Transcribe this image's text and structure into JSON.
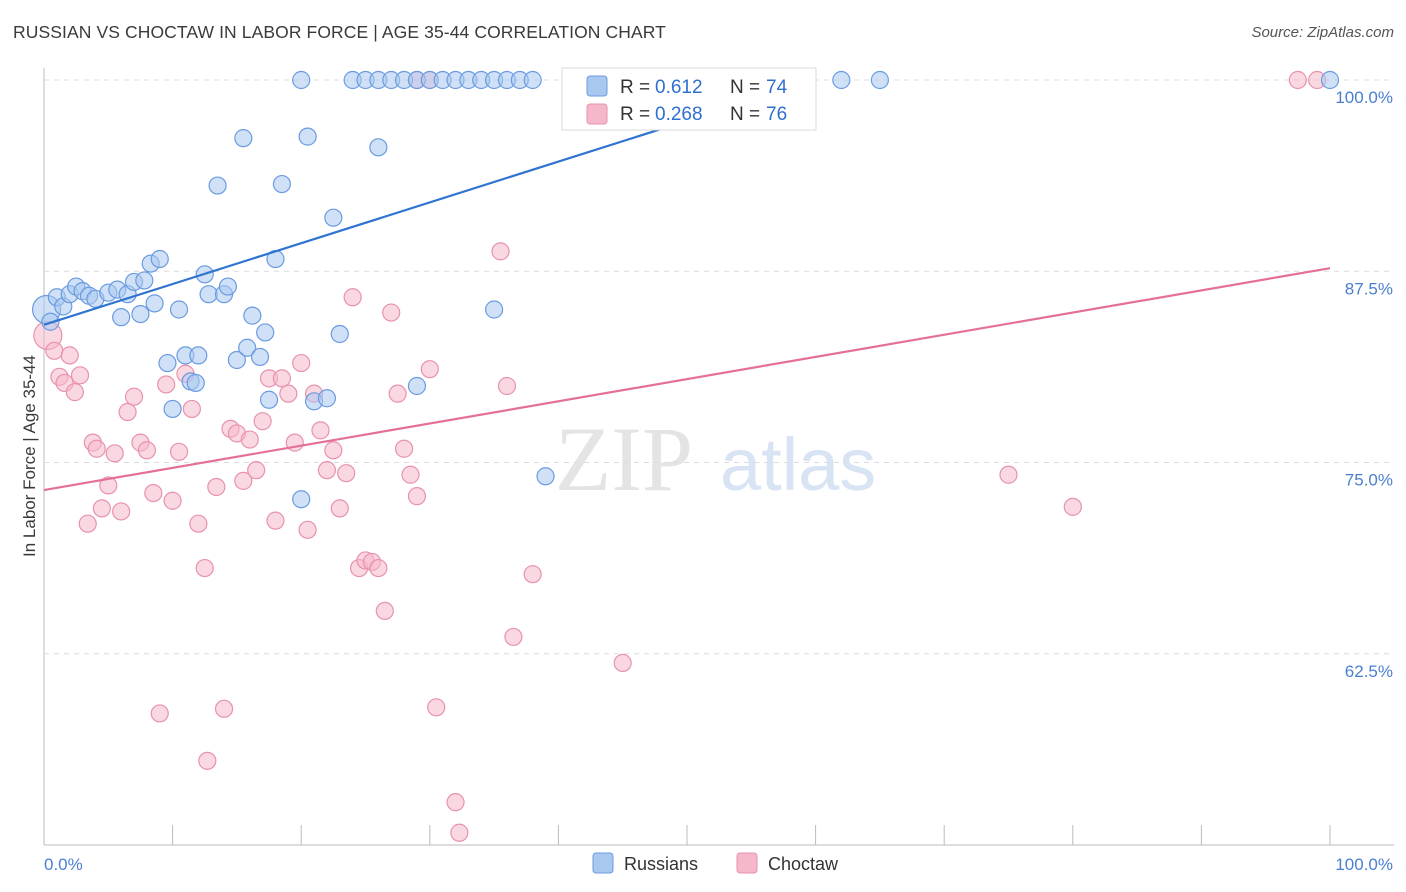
{
  "title": "RUSSIAN VS CHOCTAW IN LABOR FORCE | AGE 35-44 CORRELATION CHART",
  "source": "Source: ZipAtlas.com",
  "colors": {
    "russians_fill": "#a9c8f0",
    "russians_stroke": "#6a9be0",
    "russians_line": "#2f74d0",
    "choctaw_fill": "#f5b8ca",
    "choctaw_stroke": "#e892ad",
    "choctaw_line": "#e4709a",
    "tick_text": "#4a7fd0",
    "grid": "#dcdcdc"
  },
  "legend": {
    "r1_label": "R =",
    "r1_value": "0.612",
    "n1_label": "N =",
    "n1_value": "74",
    "r2_label": "R =",
    "r2_value": "0.268",
    "n2_label": "N =",
    "n2_value": "76"
  },
  "bottom_legend": {
    "series1": "Russians",
    "series2": "Choctaw"
  },
  "watermark": {
    "part1": "ZIP",
    "part2": "atlas"
  },
  "chart_data": {
    "type": "scatter",
    "title": "RUSSIAN VS CHOCTAW IN LABOR FORCE | AGE 35-44 CORRELATION CHART",
    "ylabel": "In Labor Force | Age 35-44",
    "xlabel": "",
    "xlim": [
      0,
      100
    ],
    "ylim": [
      50,
      100
    ],
    "x_tick_labels": [
      "0.0%",
      "100.0%"
    ],
    "y_ticks": [
      62.5,
      75.0,
      87.5,
      100.0
    ],
    "y_tick_labels": [
      "62.5%",
      "75.0%",
      "87.5%",
      "100.0%"
    ],
    "grid": "horizontal dashed",
    "legend_position": "top-center",
    "series": [
      {
        "name": "Russians",
        "R": 0.612,
        "N": 74,
        "trend": {
          "x": [
            0,
            60
          ],
          "y": [
            84.0,
            100.0
          ]
        },
        "points": [
          [
            0.2,
            85.0
          ],
          [
            0.5,
            84.2
          ],
          [
            1.0,
            85.8
          ],
          [
            1.5,
            85.2
          ],
          [
            2.0,
            86.0
          ],
          [
            2.5,
            86.5
          ],
          [
            3.0,
            86.2
          ],
          [
            3.5,
            85.9
          ],
          [
            4.0,
            85.7
          ],
          [
            5.0,
            86.1
          ],
          [
            5.7,
            86.3
          ],
          [
            6.0,
            84.5
          ],
          [
            6.5,
            86.0
          ],
          [
            7.0,
            86.8
          ],
          [
            7.5,
            84.7
          ],
          [
            7.8,
            86.9
          ],
          [
            8.3,
            88.0
          ],
          [
            8.6,
            85.4
          ],
          [
            9.0,
            88.3
          ],
          [
            9.6,
            81.5
          ],
          [
            10.0,
            78.5
          ],
          [
            10.5,
            85.0
          ],
          [
            11.0,
            82.0
          ],
          [
            11.4,
            80.3
          ],
          [
            11.8,
            80.2
          ],
          [
            12.0,
            82.0
          ],
          [
            12.5,
            87.3
          ],
          [
            12.8,
            86.0
          ],
          [
            13.5,
            93.1
          ],
          [
            14.0,
            86.0
          ],
          [
            14.3,
            86.5
          ],
          [
            15.0,
            81.7
          ],
          [
            15.5,
            96.2
          ],
          [
            15.8,
            82.5
          ],
          [
            16.2,
            84.6
          ],
          [
            16.8,
            81.9
          ],
          [
            17.2,
            83.5
          ],
          [
            17.5,
            79.1
          ],
          [
            18.0,
            88.3
          ],
          [
            18.5,
            93.2
          ],
          [
            20.0,
            72.6
          ],
          [
            20.5,
            96.3
          ],
          [
            21.0,
            79.0
          ],
          [
            22.0,
            79.2
          ],
          [
            22.5,
            91.0
          ],
          [
            23.0,
            83.4
          ],
          [
            26.0,
            95.6
          ],
          [
            29.0,
            80.0
          ],
          [
            35.0,
            85.0
          ],
          [
            39.0,
            74.1
          ],
          [
            20.0,
            100.0
          ],
          [
            24.0,
            100.0
          ],
          [
            25.0,
            100.0
          ],
          [
            26.0,
            100.0
          ],
          [
            27.0,
            100.0
          ],
          [
            28.0,
            100.0
          ],
          [
            29.0,
            100.0
          ],
          [
            30.0,
            100.0
          ],
          [
            31.0,
            100.0
          ],
          [
            32.0,
            100.0
          ],
          [
            33.0,
            100.0
          ],
          [
            34.0,
            100.0
          ],
          [
            35.0,
            100.0
          ],
          [
            36.0,
            100.0
          ],
          [
            37.0,
            100.0
          ],
          [
            38.0,
            100.0
          ],
          [
            41.0,
            100.0
          ],
          [
            43.0,
            100.0
          ],
          [
            47.0,
            100.0
          ],
          [
            48.0,
            100.0
          ],
          [
            58.0,
            100.0
          ],
          [
            62.0,
            100.0
          ],
          [
            65.0,
            100.0
          ],
          [
            100.0,
            100.0
          ]
        ]
      },
      {
        "name": "Choctaw",
        "R": 0.268,
        "N": 76,
        "trend": {
          "x": [
            0,
            100
          ],
          "y": [
            73.2,
            87.7
          ]
        },
        "points": [
          [
            0.3,
            83.3
          ],
          [
            0.8,
            82.3
          ],
          [
            1.2,
            80.6
          ],
          [
            1.6,
            80.2
          ],
          [
            2.0,
            82.0
          ],
          [
            2.4,
            79.6
          ],
          [
            2.8,
            80.7
          ],
          [
            3.4,
            71.0
          ],
          [
            3.8,
            76.3
          ],
          [
            4.1,
            75.9
          ],
          [
            4.5,
            72.0
          ],
          [
            5.0,
            73.5
          ],
          [
            5.5,
            75.6
          ],
          [
            6.0,
            71.8
          ],
          [
            6.5,
            78.3
          ],
          [
            7.0,
            79.3
          ],
          [
            7.5,
            76.3
          ],
          [
            8.0,
            75.8
          ],
          [
            8.5,
            73.0
          ],
          [
            9.0,
            58.6
          ],
          [
            9.5,
            80.1
          ],
          [
            10.0,
            72.5
          ],
          [
            10.5,
            75.7
          ],
          [
            11.0,
            80.8
          ],
          [
            11.5,
            78.5
          ],
          [
            12.0,
            71.0
          ],
          [
            12.5,
            68.1
          ],
          [
            12.7,
            55.5
          ],
          [
            13.4,
            73.4
          ],
          [
            14.0,
            58.9
          ],
          [
            14.5,
            77.2
          ],
          [
            15.0,
            76.9
          ],
          [
            15.5,
            73.8
          ],
          [
            16.0,
            76.5
          ],
          [
            16.5,
            74.5
          ],
          [
            17.0,
            77.7
          ],
          [
            17.5,
            80.5
          ],
          [
            18.0,
            71.2
          ],
          [
            18.5,
            80.5
          ],
          [
            19.0,
            79.5
          ],
          [
            19.5,
            76.3
          ],
          [
            20.0,
            81.5
          ],
          [
            20.5,
            70.6
          ],
          [
            21.0,
            79.5
          ],
          [
            21.5,
            77.1
          ],
          [
            22.0,
            74.5
          ],
          [
            22.5,
            75.8
          ],
          [
            23.0,
            72.0
          ],
          [
            23.5,
            74.3
          ],
          [
            24.0,
            85.8
          ],
          [
            24.5,
            68.1
          ],
          [
            25.0,
            68.6
          ],
          [
            25.5,
            68.5
          ],
          [
            26.0,
            68.1
          ],
          [
            26.5,
            65.3
          ],
          [
            27.0,
            84.8
          ],
          [
            27.5,
            79.5
          ],
          [
            28.0,
            75.9
          ],
          [
            28.5,
            74.2
          ],
          [
            29.0,
            72.8
          ],
          [
            30.0,
            81.1
          ],
          [
            30.5,
            59.0
          ],
          [
            32.0,
            52.8
          ],
          [
            32.3,
            50.8
          ],
          [
            35.5,
            88.8
          ],
          [
            36.0,
            80.0
          ],
          [
            36.5,
            63.6
          ],
          [
            38.0,
            67.7
          ],
          [
            45.0,
            61.9
          ],
          [
            75.0,
            74.2
          ],
          [
            80.0,
            72.1
          ],
          [
            29.0,
            100.0
          ],
          [
            30.0,
            100.0
          ],
          [
            47.0,
            100.0
          ],
          [
            97.5,
            100.0
          ],
          [
            99.0,
            100.0
          ]
        ]
      }
    ]
  }
}
